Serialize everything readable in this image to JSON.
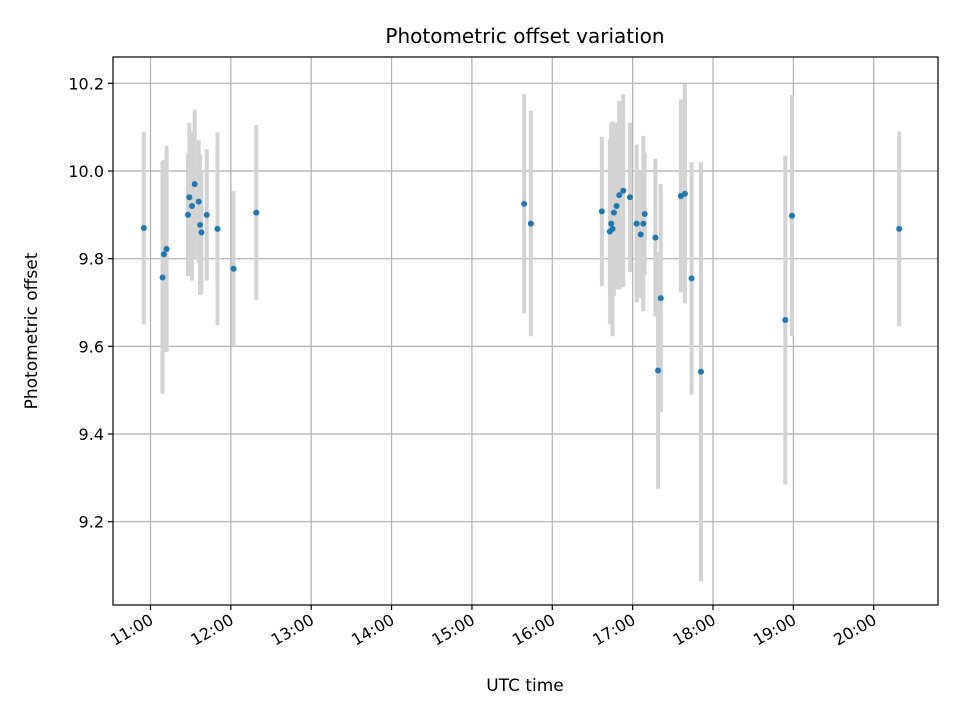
{
  "chart_data": {
    "type": "scatter",
    "title": "Photometric offset variation",
    "xlabel": "UTC time",
    "ylabel": "Photometric offset",
    "x_axis": "time",
    "xlim": [
      "10:32",
      "20:48"
    ],
    "ylim": [
      9.01,
      10.26
    ],
    "x_ticks": [
      "11:00",
      "12:00",
      "13:00",
      "14:00",
      "15:00",
      "16:00",
      "17:00",
      "18:00",
      "19:00",
      "20:00"
    ],
    "y_ticks": [
      9.2,
      9.4,
      9.6,
      9.8,
      10.0,
      10.2
    ],
    "grid": true,
    "point_color": "#1f77b4",
    "errorbar_color": "#d3d3d3",
    "series": [
      {
        "points": [
          {
            "t": "10:55",
            "y": 9.87,
            "err": 0.22
          },
          {
            "t": "11:09",
            "y": 9.757,
            "err": 0.265
          },
          {
            "t": "11:10",
            "y": 9.81,
            "err": 0.215
          },
          {
            "t": "11:12",
            "y": 9.822,
            "err": 0.235
          },
          {
            "t": "11:28",
            "y": 9.9,
            "err": 0.14
          },
          {
            "t": "11:29",
            "y": 9.94,
            "err": 0.17
          },
          {
            "t": "11:31",
            "y": 9.92,
            "err": 0.17
          },
          {
            "t": "11:33",
            "y": 9.97,
            "err": 0.17
          },
          {
            "t": "11:36",
            "y": 9.93,
            "err": 0.14
          },
          {
            "t": "11:37",
            "y": 9.877,
            "err": 0.16
          },
          {
            "t": "11:38",
            "y": 9.86,
            "err": 0.14
          },
          {
            "t": "11:42",
            "y": 9.9,
            "err": 0.15
          },
          {
            "t": "11:50",
            "y": 9.868,
            "err": 0.22
          },
          {
            "t": "12:02",
            "y": 9.777,
            "err": 0.177
          },
          {
            "t": "12:19",
            "y": 9.905,
            "err": 0.2
          },
          {
            "t": "15:39",
            "y": 9.925,
            "err": 0.25
          },
          {
            "t": "15:44",
            "y": 9.88,
            "err": 0.257
          },
          {
            "t": "16:37",
            "y": 9.908,
            "err": 0.17
          },
          {
            "t": "16:43",
            "y": 9.862,
            "err": 0.21
          },
          {
            "t": "16:44",
            "y": 9.88,
            "err": 0.23
          },
          {
            "t": "16:45",
            "y": 9.868,
            "err": 0.245
          },
          {
            "t": "16:46",
            "y": 9.905,
            "err": 0.19
          },
          {
            "t": "16:48",
            "y": 9.92,
            "err": 0.19
          },
          {
            "t": "16:50",
            "y": 9.945,
            "err": 0.215
          },
          {
            "t": "16:53",
            "y": 9.955,
            "err": 0.22
          },
          {
            "t": "16:58",
            "y": 9.94,
            "err": 0.17
          },
          {
            "t": "17:03",
            "y": 9.88,
            "err": 0.18
          },
          {
            "t": "17:06",
            "y": 9.855,
            "err": 0.145
          },
          {
            "t": "17:08",
            "y": 9.88,
            "err": 0.2
          },
          {
            "t": "17:09",
            "y": 9.902,
            "err": 0.14
          },
          {
            "t": "17:17",
            "y": 9.848,
            "err": 0.18
          },
          {
            "t": "17:19",
            "y": 9.545,
            "err": 0.27
          },
          {
            "t": "17:21",
            "y": 9.71,
            "err": 0.26
          },
          {
            "t": "17:36",
            "y": 9.943,
            "err": 0.22
          },
          {
            "t": "17:39",
            "y": 9.948,
            "err": 0.25
          },
          {
            "t": "17:44",
            "y": 9.755,
            "err": 0.265
          },
          {
            "t": "17:51",
            "y": 9.542,
            "err": 0.478
          },
          {
            "t": "18:54",
            "y": 9.66,
            "err": 0.375
          },
          {
            "t": "18:59",
            "y": 9.898,
            "err": 0.275
          },
          {
            "t": "20:19",
            "y": 9.868,
            "err": 0.222
          }
        ]
      }
    ]
  }
}
